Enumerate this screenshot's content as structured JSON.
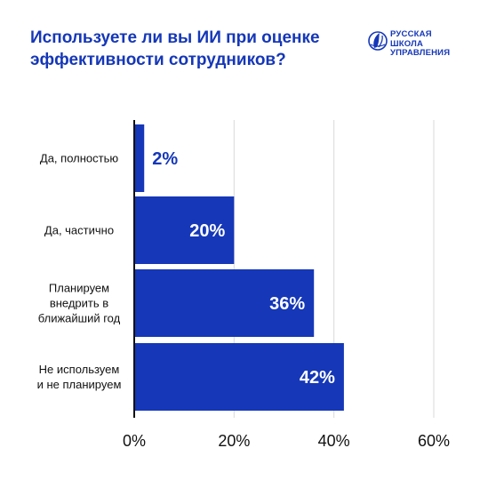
{
  "title": "Используете ли вы ИИ при оценке эффективности сотрудников?",
  "logo": {
    "lines": [
      "РУССКАЯ",
      "ШКОЛА",
      "УПРАВЛЕНИЯ"
    ],
    "icon": "rsu-leaf-globe-icon"
  },
  "colors": {
    "accent": "#1537b8",
    "bar": "#1537b8",
    "label_inside": "#ffffff",
    "label_outside": "#1537b8",
    "grid": "#d9d9d9",
    "axis": "#111111",
    "text": "#111111"
  },
  "chart_data": {
    "type": "bar",
    "orientation": "horizontal",
    "categories": [
      [
        "Да, полностью"
      ],
      [
        "Да, частично"
      ],
      [
        "Планируем",
        "внедрить в",
        "ближайший год"
      ],
      [
        "Не используем",
        "и не планируем"
      ]
    ],
    "values": [
      2,
      20,
      36,
      42
    ],
    "data_labels": [
      "2%",
      "20%",
      "36%",
      "42%"
    ],
    "xlim": [
      0,
      60
    ],
    "xticks": [
      0,
      20,
      40,
      60
    ],
    "xtick_labels": [
      "0%",
      "20%",
      "40%",
      "60%"
    ],
    "grid": true
  }
}
